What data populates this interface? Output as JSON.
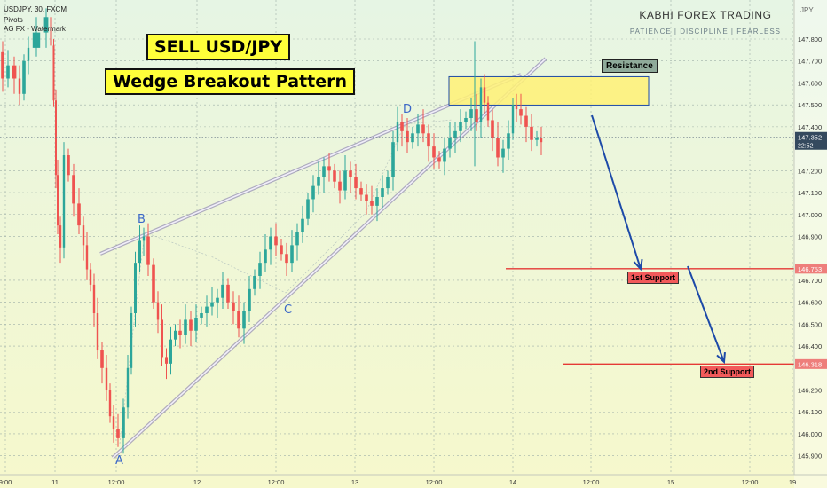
{
  "header": {
    "symbol_line": "USDJPY, 30, FXCM",
    "indicator_1": "Pivots",
    "indicator_2": "AG FX - Watermark",
    "currency": "JPY"
  },
  "brand": {
    "name": "KABHI FOREX TRADING",
    "tagline": "PATIENCE  |  DISCIPLINE  |  FEARLESS"
  },
  "titles": {
    "line1": "SELL USD/JPY",
    "line2": "Wedge Breakout Pattern"
  },
  "labels": {
    "resistance": "Resistance",
    "support1": "1st Support",
    "support2": "2nd Support",
    "point_a": "A",
    "point_b": "B",
    "point_c": "C",
    "point_d": "D",
    "current_price": "147.352",
    "countdown": "22:52"
  },
  "colors": {
    "bull": "#2ca69a",
    "bear": "#ef5350",
    "wedge": "#7a6fa8",
    "arrow": "#1d4aa8",
    "support": "#e53935",
    "resistance_fill": "#fff176"
  },
  "chart_data": {
    "type": "candlestick",
    "symbol": "USDJPY",
    "timeframe": "30",
    "source": "FXCM",
    "y_ticks": [
      147.8,
      147.7,
      147.6,
      147.5,
      147.4,
      147.2,
      147.1,
      147.0,
      146.9,
      146.7,
      146.6,
      146.5,
      146.4,
      146.2,
      146.1,
      146.0,
      145.9
    ],
    "ylim": [
      145.86,
      147.88
    ],
    "x_ticks": [
      "9:00",
      "11",
      "12:00",
      "12",
      "12:00",
      "13",
      "12:00",
      "14",
      "12:00",
      "15",
      "12:00",
      "19"
    ],
    "price_path": [
      [
        0,
        147.74
      ],
      [
        6,
        147.62
      ],
      [
        12,
        147.68
      ],
      [
        20,
        147.62
      ],
      [
        24,
        147.55
      ],
      [
        30,
        147.7
      ],
      [
        34,
        147.76
      ],
      [
        48,
        147.83
      ],
      [
        56,
        147.9
      ],
      [
        59,
        147.77
      ],
      [
        62,
        147.52
      ],
      [
        64,
        147.18
      ],
      [
        66,
        146.95
      ],
      [
        70,
        146.85
      ],
      [
        74,
        147.27
      ],
      [
        80,
        147.18
      ],
      [
        86,
        147.05
      ],
      [
        92,
        146.95
      ],
      [
        96,
        146.86
      ],
      [
        100,
        146.75
      ],
      [
        104,
        146.68
      ],
      [
        108,
        146.55
      ],
      [
        112,
        146.38
      ],
      [
        118,
        146.3
      ],
      [
        122,
        146.2
      ],
      [
        126,
        146.08
      ],
      [
        130,
        146.02
      ],
      [
        136,
        145.98
      ],
      [
        142,
        146.12
      ],
      [
        146,
        146.3
      ],
      [
        150,
        146.55
      ],
      [
        155,
        146.78
      ],
      [
        160,
        146.88
      ],
      [
        164,
        146.9
      ],
      [
        170,
        146.77
      ],
      [
        176,
        146.6
      ],
      [
        180,
        146.52
      ],
      [
        185,
        146.35
      ],
      [
        190,
        146.32
      ],
      [
        195,
        146.43
      ],
      [
        200,
        146.47
      ],
      [
        206,
        146.45
      ],
      [
        212,
        146.52
      ],
      [
        218,
        146.47
      ],
      [
        224,
        146.53
      ],
      [
        230,
        146.55
      ],
      [
        236,
        146.58
      ],
      [
        242,
        146.6
      ],
      [
        248,
        146.62
      ],
      [
        254,
        146.68
      ],
      [
        260,
        146.6
      ],
      [
        266,
        146.56
      ],
      [
        272,
        146.48
      ],
      [
        278,
        146.56
      ],
      [
        284,
        146.66
      ],
      [
        290,
        146.72
      ],
      [
        296,
        146.78
      ],
      [
        302,
        146.84
      ],
      [
        308,
        146.9
      ],
      [
        314,
        146.86
      ],
      [
        320,
        146.82
      ],
      [
        326,
        146.78
      ],
      [
        332,
        146.86
      ],
      [
        338,
        146.92
      ],
      [
        344,
        146.98
      ],
      [
        350,
        147.07
      ],
      [
        356,
        147.13
      ],
      [
        362,
        147.17
      ],
      [
        368,
        147.22
      ],
      [
        374,
        147.2
      ],
      [
        380,
        147.15
      ],
      [
        386,
        147.11
      ],
      [
        392,
        147.2
      ],
      [
        398,
        147.17
      ],
      [
        404,
        147.12
      ],
      [
        410,
        147.09
      ],
      [
        416,
        147.06
      ],
      [
        422,
        147.04
      ],
      [
        428,
        147.08
      ],
      [
        434,
        147.12
      ],
      [
        440,
        147.17
      ],
      [
        446,
        147.33
      ],
      [
        450,
        147.42
      ],
      [
        456,
        147.38
      ],
      [
        462,
        147.33
      ],
      [
        468,
        147.37
      ],
      [
        474,
        147.41
      ],
      [
        480,
        147.37
      ],
      [
        486,
        147.31
      ],
      [
        492,
        147.26
      ],
      [
        498,
        147.24
      ],
      [
        504,
        147.3
      ],
      [
        510,
        147.35
      ],
      [
        516,
        147.38
      ],
      [
        522,
        147.42
      ],
      [
        528,
        147.44
      ],
      [
        534,
        147.48
      ],
      [
        540,
        147.42
      ],
      [
        544,
        147.58
      ],
      [
        548,
        147.51
      ],
      [
        552,
        147.43
      ],
      [
        558,
        147.35
      ],
      [
        564,
        147.26
      ],
      [
        570,
        147.3
      ],
      [
        576,
        147.37
      ],
      [
        580,
        147.5
      ],
      [
        584,
        147.48
      ],
      [
        590,
        147.45
      ],
      [
        596,
        147.4
      ],
      [
        602,
        147.34
      ],
      [
        608,
        147.35
      ],
      [
        612,
        147.33
      ]
    ],
    "resistance_zone": [
      147.52,
      147.6
    ],
    "support_levels": [
      146.753,
      146.318
    ],
    "current_price": 147.352,
    "pattern_points": {
      "A": 146.0,
      "B": 146.88,
      "C": 146.49,
      "D": 147.44
    },
    "x_positions": [
      6,
      62,
      131,
      222,
      311,
      400,
      489,
      578,
      666,
      756,
      845,
      893
    ]
  }
}
